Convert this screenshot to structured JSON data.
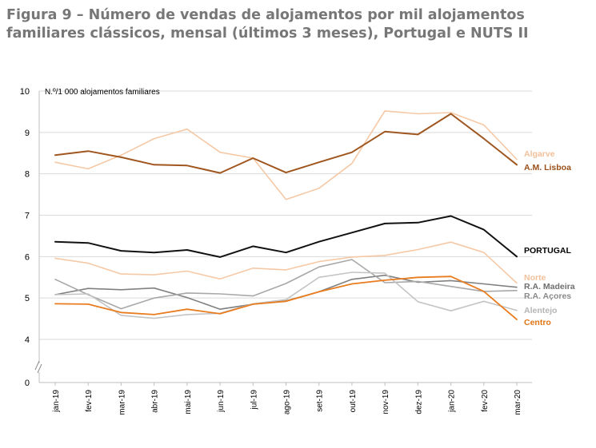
{
  "chart_data": {
    "type": "line",
    "title_line1": "Figura 9 – Número de vendas de alojamentos por mil alojamentos",
    "title_line2": "familiares clássicos, mensal (últimos 3 meses), Portugal e NUTS II",
    "ylabel": "N.º/1 000 alojamentos familiares",
    "ylim": [
      4,
      10
    ],
    "axis_break": true,
    "yticks": [
      "4",
      "5",
      "6",
      "7",
      "8",
      "9",
      "10"
    ],
    "zero_label": "0",
    "categories": [
      "jan-19",
      "fev-19",
      "mar-19",
      "abr-19",
      "mai-19",
      "jun-19",
      "jul-19",
      "ago-19",
      "set-19",
      "out-19",
      "nov-19",
      "dez-19",
      "jan-20",
      "fev-20",
      "mar-20"
    ],
    "series": [
      {
        "name": "Algarve",
        "color": "#f6c9a6",
        "width": 1.6,
        "label_color": "#f3c09a",
        "values": [
          8.28,
          8.12,
          8.45,
          8.85,
          9.08,
          8.52,
          8.38,
          7.38,
          7.65,
          8.25,
          9.52,
          9.45,
          9.48,
          9.18,
          8.35
        ]
      },
      {
        "name": "A.M. Lisboa",
        "color": "#a0561f",
        "width": 2.0,
        "label_color": "#9a4f1a",
        "values": [
          8.45,
          8.55,
          8.4,
          8.22,
          8.2,
          8.02,
          8.38,
          8.03,
          8.28,
          8.52,
          9.02,
          8.95,
          9.45,
          8.85,
          8.22
        ]
      },
      {
        "name": "PORTUGAL",
        "color": "#111111",
        "width": 2.0,
        "label_color": "#000000",
        "values": [
          6.36,
          6.33,
          6.14,
          6.1,
          6.16,
          5.99,
          6.25,
          6.1,
          6.36,
          6.58,
          6.8,
          6.82,
          6.98,
          6.65,
          6.0
        ]
      },
      {
        "name": "Norte",
        "color": "#f6c9a6",
        "width": 1.6,
        "label_color": "#f3c09a",
        "values": [
          5.96,
          5.84,
          5.58,
          5.56,
          5.65,
          5.46,
          5.72,
          5.68,
          5.88,
          5.99,
          6.03,
          6.17,
          6.35,
          6.1,
          5.36
        ]
      },
      {
        "name": "R.A. Madeira",
        "color": "#808080",
        "width": 1.6,
        "label_color": "#6e6e6e",
        "values": [
          5.08,
          5.23,
          5.2,
          5.24,
          5.01,
          4.73,
          4.85,
          4.93,
          5.15,
          5.45,
          5.55,
          5.38,
          5.42,
          5.34,
          5.26
        ]
      },
      {
        "name": "R.A. Açores",
        "color": "#a8a8a8",
        "width": 1.6,
        "label_color": "#8a8a8a",
        "values": [
          5.45,
          5.08,
          4.74,
          5.0,
          5.12,
          5.1,
          5.05,
          5.35,
          5.75,
          5.93,
          5.37,
          5.4,
          5.28,
          5.16,
          5.18
        ]
      },
      {
        "name": "Alentejo",
        "color": "#c4c4c4",
        "width": 1.6,
        "label_color": "#b5b5b5",
        "values": [
          5.08,
          5.1,
          4.58,
          4.51,
          4.6,
          4.63,
          4.86,
          4.96,
          5.5,
          5.62,
          5.6,
          4.91,
          4.69,
          4.92,
          4.7
        ]
      },
      {
        "name": "Centro",
        "color": "#e87c1e",
        "width": 1.8,
        "label_color": "#e07415",
        "values": [
          4.86,
          4.85,
          4.65,
          4.6,
          4.73,
          4.62,
          4.85,
          4.92,
          5.15,
          5.34,
          5.43,
          5.5,
          5.52,
          5.16,
          4.48
        ]
      }
    ]
  }
}
